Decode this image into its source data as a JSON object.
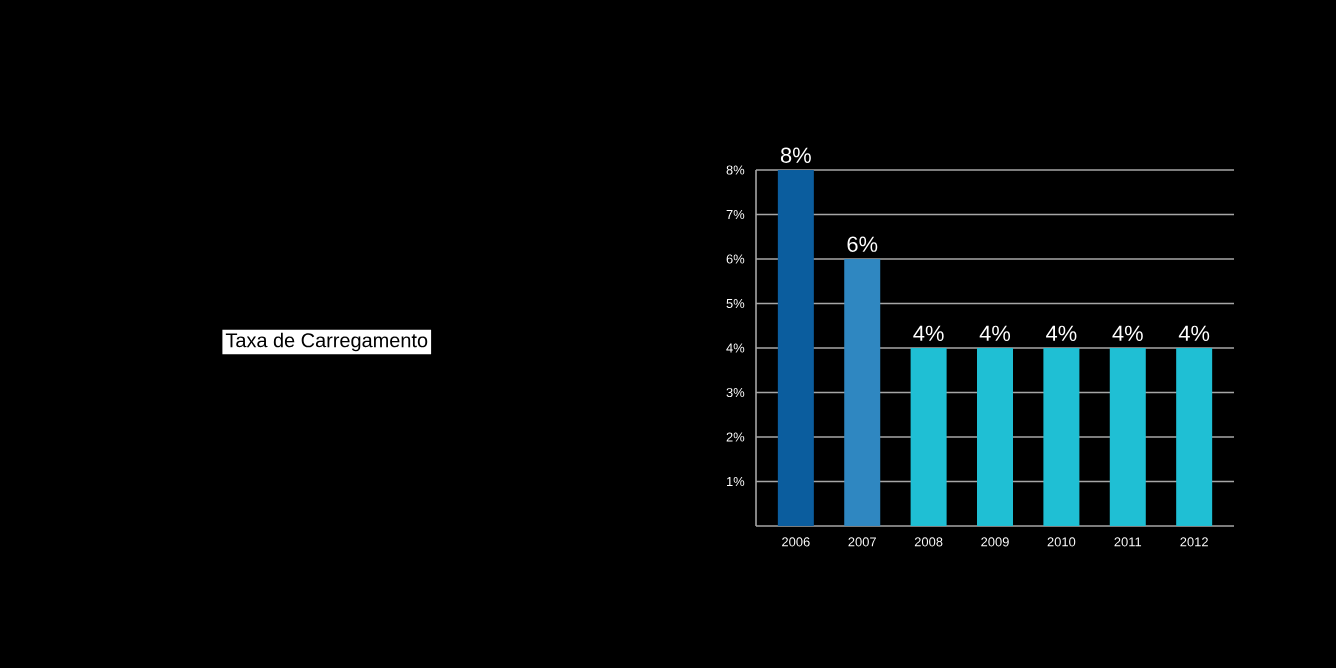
{
  "chart_data": {
    "type": "bar",
    "title": "Taxa de Carregamento",
    "categories": [
      "2006",
      "2007",
      "2008",
      "2009",
      "2010",
      "2011",
      "2012"
    ],
    "values": [
      8,
      6,
      4,
      4,
      4,
      4,
      4
    ],
    "colors": [
      "#0b5d9e",
      "#2f87c1",
      "#1fbfd4",
      "#1fbfd4",
      "#1fbfd4",
      "#1fbfd4",
      "#1fbfd4"
    ],
    "value_labels": [
      "8%",
      "6%",
      "4%",
      "4%",
      "4%",
      "4%",
      "4%"
    ],
    "ylim": [
      0,
      8
    ],
    "yticks": [
      {
        "value": 1,
        "label": "1%"
      },
      {
        "value": 2,
        "label": "2%"
      },
      {
        "value": 3,
        "label": "3%"
      },
      {
        "value": 4,
        "label": "4%"
      },
      {
        "value": 5,
        "label": "5%"
      },
      {
        "value": 6,
        "label": "6%"
      },
      {
        "value": 7,
        "label": "7%"
      },
      {
        "value": 8,
        "label": "8%"
      }
    ],
    "grid": "y"
  }
}
